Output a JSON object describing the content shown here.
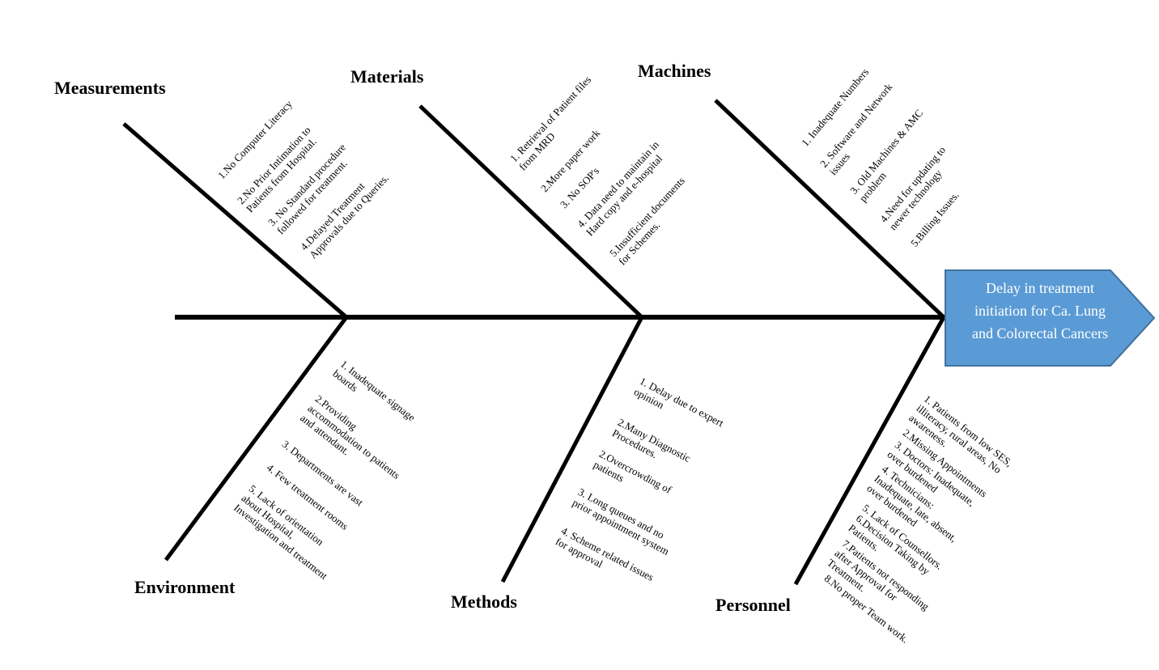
{
  "effect": "Delay in treatment\ninitiation for Ca. Lung\nand Colorectal Cancers",
  "colors": {
    "head_fill": "#5b9bd5",
    "head_stroke": "#41719c",
    "bone": "#000000"
  },
  "categories": {
    "measurements": {
      "label": "Measurements",
      "causes": [
        "1.No Computer Literacy",
        "2.No Prior Intimation to\nPatients from Hospital.",
        "3. No Standard procedure\nfollowed for treatment.",
        "4.Delayed Treatment\nApprovals due to Queries."
      ]
    },
    "materials": {
      "label": "Materials",
      "causes": [
        "1. Retrieval of Patient files\nfrom MRD",
        "2.More paper work",
        "3. No SOP's",
        "4. Data need to maintain in\nHard copy and e-hospital",
        "5.Insufficient documents\nfor Schemes."
      ]
    },
    "machines": {
      "label": "Machines",
      "causes": [
        "1. Inadequate Numbers",
        "2. Software and Network\nissues",
        "3. Old Machines & AMC\nproblem",
        "4.Need for updating to\nnewer technology",
        "5.Billing Issues."
      ]
    },
    "environment": {
      "label": "Environment",
      "causes": [
        "1. Inadequate signage\nboards",
        "2.Providing\naccommodation to patients\nand attendant.",
        "3. Departments are vast",
        "4. Few treatment rooms",
        "5. Lack of orientation\nabout Hospital,\nInvestigation and treatment"
      ]
    },
    "methods": {
      "label": "Methods",
      "causes": [
        "1. Delay due to expert\nopinion",
        "2.Many Diagnostic\nProcedures.",
        "2.Overcrowding of\npatients",
        "3. Long queues and no\nprior appointment system",
        "4. Scheme related issues\nfor approval"
      ]
    },
    "personnel": {
      "label": "Personnel",
      "causes": [
        "1. Patients from low SES,\nilliteracy, rural areas, No\nawareness.",
        "2.Missing Appointments",
        "3. Doctors: Inadequate,\nover burdened",
        "4. Technicians:\nInadequate, late, absent,\nover burdened",
        "5. Lack of Counsellors.",
        "6.Decision Taking by\nPatients.",
        "7.Patients not responding\nafter Approval for\nTreatment.",
        "8.No proper Team work."
      ]
    }
  }
}
